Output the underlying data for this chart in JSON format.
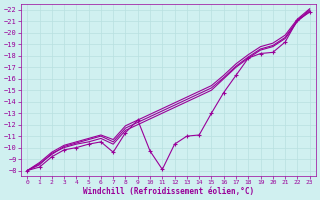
{
  "xlabel": "Windchill (Refroidissement éolien,°C)",
  "bg_color": "#d0f0f0",
  "grid_color": "#b8e0e0",
  "line_color": "#990099",
  "x_hours": [
    0,
    1,
    2,
    3,
    4,
    5,
    6,
    7,
    8,
    9,
    10,
    11,
    12,
    13,
    14,
    15,
    16,
    17,
    18,
    19,
    20,
    21,
    22,
    23
  ],
  "series1": [
    -8.0,
    -8.3,
    -9.2,
    -9.8,
    -10.0,
    -10.3,
    -10.5,
    -9.6,
    -11.3,
    -12.4,
    -9.7,
    -8.1,
    -10.3,
    -11.0,
    -11.1,
    -13.0,
    -14.8,
    -16.3,
    -17.8,
    -18.2,
    -18.3,
    -19.2,
    -21.1,
    -21.8
  ],
  "series2": [
    -8.0,
    -8.5,
    -9.5,
    -10.0,
    -10.3,
    -10.5,
    -10.8,
    -10.3,
    -11.5,
    -12.0,
    -12.5,
    -13.0,
    -13.5,
    -14.0,
    -14.5,
    -15.0,
    -16.0,
    -17.0,
    -17.8,
    -18.5,
    -18.8,
    -19.5,
    -21.0,
    -21.9
  ],
  "series3": [
    -8.0,
    -8.6,
    -9.4,
    -10.1,
    -10.4,
    -10.7,
    -11.0,
    -10.5,
    -11.7,
    -12.2,
    -12.7,
    -13.2,
    -13.7,
    -14.2,
    -14.7,
    -15.2,
    -16.1,
    -17.1,
    -17.9,
    -18.6,
    -18.9,
    -19.6,
    -21.1,
    -22.0
  ],
  "series4": [
    -8.0,
    -8.7,
    -9.6,
    -10.2,
    -10.5,
    -10.8,
    -11.1,
    -10.7,
    -11.9,
    -12.4,
    -12.9,
    -13.4,
    -13.9,
    -14.4,
    -14.9,
    -15.4,
    -16.3,
    -17.3,
    -18.1,
    -18.8,
    -19.1,
    -19.8,
    -21.2,
    -22.1
  ],
  "ylim_top": -7.5,
  "ylim_bottom": -22.5,
  "xlim": [
    -0.5,
    23.5
  ],
  "yticks": [
    -8,
    -9,
    -10,
    -11,
    -12,
    -13,
    -14,
    -15,
    -16,
    -17,
    -18,
    -19,
    -20,
    -21,
    -22
  ],
  "xticks": [
    0,
    1,
    2,
    3,
    4,
    5,
    6,
    7,
    8,
    9,
    10,
    11,
    12,
    13,
    14,
    15,
    16,
    17,
    18,
    19,
    20,
    21,
    22,
    23
  ]
}
